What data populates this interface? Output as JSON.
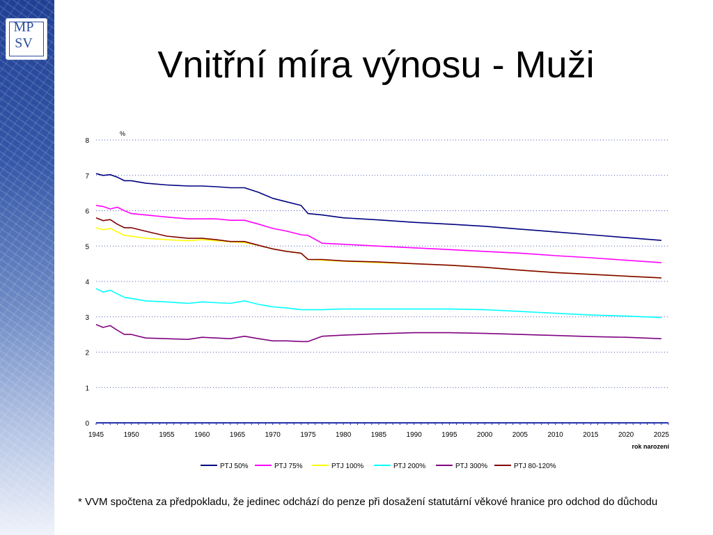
{
  "slide": {
    "title": "Vnitřní míra výnosu - Muži",
    "logo_line1": "MP",
    "logo_line2": "SV",
    "footnote": "* VVM spočtena za předpokladu, že jedinec odchází do penze při dosažení statutární věkové hranice pro odchod do důchodu"
  },
  "chart_data": {
    "type": "line",
    "title": "",
    "ylabel": "%",
    "xlabel": "rok narození",
    "xlim": [
      1945,
      2026
    ],
    "ylim": [
      0,
      8
    ],
    "yticks": [
      0,
      1,
      2,
      3,
      4,
      5,
      6,
      7,
      8
    ],
    "xticks": [
      1945,
      1950,
      1955,
      1960,
      1965,
      1970,
      1975,
      1980,
      1985,
      1990,
      1995,
      2000,
      2005,
      2010,
      2015,
      2020,
      2025
    ],
    "grid": "horizontal dotted",
    "legend_position": "bottom",
    "x": [
      1945,
      1946,
      1947,
      1948,
      1949,
      1950,
      1952,
      1955,
      1958,
      1960,
      1962,
      1964,
      1966,
      1968,
      1970,
      1972,
      1974,
      1975,
      1977,
      1980,
      1985,
      1990,
      1995,
      2000,
      2005,
      2010,
      2015,
      2020,
      2025
    ],
    "series": [
      {
        "name": "PTJ 50%",
        "color": "#000080",
        "values": [
          7.05,
          7.0,
          7.02,
          6.95,
          6.85,
          6.85,
          6.78,
          6.73,
          6.7,
          6.7,
          6.68,
          6.65,
          6.65,
          6.52,
          6.35,
          6.25,
          6.15,
          5.92,
          5.88,
          5.8,
          5.74,
          5.67,
          5.62,
          5.56,
          5.48,
          5.4,
          5.32,
          5.24,
          5.16
        ]
      },
      {
        "name": "PTJ 75%",
        "color": "#ff00ff",
        "values": [
          6.15,
          6.12,
          6.05,
          6.1,
          6.0,
          5.92,
          5.88,
          5.82,
          5.77,
          5.77,
          5.77,
          5.73,
          5.73,
          5.62,
          5.5,
          5.42,
          5.32,
          5.3,
          5.08,
          5.05,
          5.0,
          4.95,
          4.9,
          4.85,
          4.8,
          4.73,
          4.67,
          4.6,
          4.53
        ]
      },
      {
        "name": "PTJ 100%",
        "color": "#ffff00",
        "values": [
          5.52,
          5.46,
          5.5,
          5.4,
          5.3,
          5.28,
          5.22,
          5.18,
          5.15,
          5.18,
          5.15,
          5.12,
          5.1,
          5.02,
          4.92,
          4.85,
          4.8,
          4.62,
          4.6,
          4.57,
          4.53,
          4.5,
          4.46,
          4.4,
          4.32,
          4.25,
          4.2,
          4.15,
          4.1
        ]
      },
      {
        "name": "PTJ 200%",
        "color": "#00ffff",
        "values": [
          3.8,
          3.7,
          3.75,
          3.65,
          3.55,
          3.52,
          3.45,
          3.42,
          3.38,
          3.42,
          3.4,
          3.38,
          3.45,
          3.35,
          3.28,
          3.25,
          3.2,
          3.2,
          3.2,
          3.22,
          3.22,
          3.22,
          3.22,
          3.2,
          3.15,
          3.1,
          3.05,
          3.02,
          2.98
        ]
      },
      {
        "name": "PTJ 300%",
        "color": "#800080",
        "values": [
          2.78,
          2.7,
          2.75,
          2.62,
          2.5,
          2.5,
          2.4,
          2.38,
          2.36,
          2.42,
          2.4,
          2.38,
          2.45,
          2.38,
          2.32,
          2.32,
          2.3,
          2.3,
          2.45,
          2.48,
          2.52,
          2.55,
          2.55,
          2.53,
          2.5,
          2.47,
          2.44,
          2.42,
          2.38
        ]
      },
      {
        "name": "PTJ 80-120%",
        "color": "#800000",
        "values": [
          5.8,
          5.72,
          5.75,
          5.62,
          5.52,
          5.52,
          5.42,
          5.28,
          5.22,
          5.22,
          5.18,
          5.13,
          5.13,
          5.02,
          4.92,
          4.85,
          4.8,
          4.62,
          4.62,
          4.58,
          4.55,
          4.5,
          4.46,
          4.4,
          4.32,
          4.25,
          4.2,
          4.15,
          4.1
        ]
      }
    ]
  }
}
